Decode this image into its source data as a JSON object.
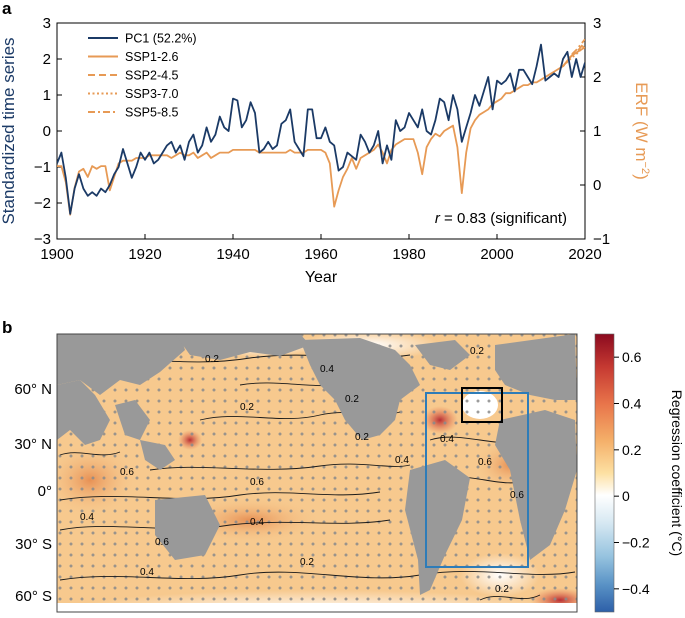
{
  "panel_a_label": "a",
  "panel_b_label": "b",
  "chart_data": [
    {
      "type": "line",
      "xlabel": "Year",
      "ylabel": "Standardized time series",
      "ylabel_right": "ERF (W m⁻²)",
      "ylabel_right_main": "ERF (W m",
      "ylabel_right_sup": "−2",
      "ylabel_right_close": ")",
      "xlim": [
        1900,
        2020
      ],
      "ylim": [
        -3,
        3
      ],
      "ylim_right": [
        -1,
        3
      ],
      "xticks": [
        "1900",
        "1920",
        "1940",
        "1960",
        "1980",
        "2000",
        "2020"
      ],
      "yticks": [
        "−3",
        "−2",
        "−1",
        "0",
        "1",
        "2",
        "3"
      ],
      "yticks_right": [
        "−1",
        "0",
        "1",
        "2",
        "3"
      ],
      "annotation_r": "r",
      "annotation_rest": " = 0.83 (significant)",
      "legend_placement": "top-left",
      "colors": {
        "pc1": "#1b3a66",
        "erf": "#e79a55"
      },
      "series": [
        {
          "name": "PC1 (52.2%)",
          "axis": "left",
          "x": [
            1900,
            1901,
            1902,
            1903,
            1904,
            1905,
            1906,
            1907,
            1908,
            1909,
            1910,
            1911,
            1912,
            1913,
            1914,
            1915,
            1916,
            1917,
            1918,
            1919,
            1920,
            1921,
            1922,
            1923,
            1924,
            1925,
            1926,
            1927,
            1928,
            1929,
            1930,
            1931,
            1932,
            1933,
            1934,
            1935,
            1936,
            1937,
            1938,
            1939,
            1940,
            1941,
            1942,
            1943,
            1944,
            1945,
            1946,
            1947,
            1948,
            1949,
            1950,
            1951,
            1952,
            1953,
            1954,
            1955,
            1956,
            1957,
            1958,
            1959,
            1960,
            1961,
            1962,
            1963,
            1964,
            1965,
            1966,
            1967,
            1968,
            1969,
            1970,
            1971,
            1972,
            1973,
            1974,
            1975,
            1976,
            1977,
            1978,
            1979,
            1980,
            1981,
            1982,
            1983,
            1984,
            1985,
            1986,
            1987,
            1988,
            1989,
            1990,
            1991,
            1992,
            1993,
            1994,
            1995,
            1996,
            1997,
            1998,
            1999,
            2000,
            2001,
            2002,
            2003,
            2004,
            2005,
            2006,
            2007,
            2008,
            2009,
            2010,
            2011,
            2012,
            2013,
            2014,
            2015,
            2016,
            2017,
            2018,
            2019,
            2020
          ],
          "values": [
            -0.9,
            -0.6,
            -1.3,
            -2.3,
            -1.6,
            -1.2,
            -1.6,
            -1.8,
            -1.7,
            -1.8,
            -1.6,
            -1.7,
            -1.5,
            -1.2,
            -1.0,
            -0.5,
            -0.9,
            -1.3,
            -1.0,
            -0.6,
            -0.8,
            -0.6,
            -0.9,
            -0.8,
            -0.6,
            -0.4,
            -0.3,
            -0.6,
            -0.4,
            -0.8,
            -0.3,
            -0.1,
            -0.6,
            -0.4,
            0.1,
            -0.3,
            -0.1,
            0.4,
            0.1,
            0.0,
            0.9,
            0.85,
            0.1,
            0.3,
            0.8,
            0.5,
            -0.6,
            -0.5,
            -0.3,
            -0.5,
            -0.4,
            0.2,
            0.3,
            0.6,
            -0.3,
            -0.5,
            -0.7,
            0.6,
            0.6,
            -0.2,
            -0.2,
            0.1,
            -0.3,
            -0.4,
            -1.1,
            -1.0,
            -0.6,
            -0.7,
            -0.8,
            -0.1,
            -0.3,
            -0.6,
            -0.4,
            0.0,
            -0.9,
            -0.4,
            -0.8,
            0.3,
            0.0,
            0.1,
            0.5,
            0.3,
            0.1,
            0.6,
            0.0,
            -0.1,
            0.3,
            0.9,
            0.8,
            0.3,
            1.0,
            0.6,
            -0.3,
            0.1,
            0.5,
            1.0,
            0.7,
            1.1,
            1.5,
            0.6,
            1.4,
            1.3,
            1.4,
            1.6,
            1.1,
            1.7,
            1.7,
            1.5,
            1.3,
            1.8,
            2.4,
            1.4,
            1.5,
            1.6,
            1.5,
            2.0,
            2.2,
            1.5,
            2.0,
            1.5,
            1.9
          ]
        },
        {
          "name": "SSP1-2.6",
          "axis": "right",
          "x": [
            1900,
            1901,
            1902,
            1903,
            1904,
            1905,
            1906,
            1907,
            1908,
            1909,
            1910,
            1911,
            1912,
            1913,
            1914,
            1915,
            1916,
            1917,
            1918,
            1919,
            1920,
            1921,
            1922,
            1923,
            1924,
            1925,
            1926,
            1927,
            1928,
            1929,
            1930,
            1931,
            1932,
            1933,
            1934,
            1935,
            1936,
            1937,
            1938,
            1939,
            1940,
            1941,
            1942,
            1943,
            1944,
            1945,
            1946,
            1947,
            1948,
            1949,
            1950,
            1951,
            1952,
            1953,
            1954,
            1955,
            1956,
            1957,
            1958,
            1959,
            1960,
            1961,
            1962,
            1963,
            1964,
            1965,
            1966,
            1967,
            1968,
            1969,
            1970,
            1971,
            1972,
            1973,
            1974,
            1975,
            1976,
            1977,
            1978,
            1979,
            1980,
            1981,
            1982,
            1983,
            1984,
            1985,
            1986,
            1987,
            1988,
            1989,
            1990,
            1991,
            1992,
            1993,
            1994,
            1995,
            1996,
            1997,
            1998,
            1999,
            2000,
            2001,
            2002,
            2003,
            2004,
            2005,
            2006,
            2007,
            2008,
            2009,
            2010,
            2011,
            2012,
            2013,
            2014,
            2015,
            2016,
            2017,
            2018,
            2019,
            2020
          ],
          "values": [
            0.35,
            0.35,
            0.05,
            -0.55,
            -0.05,
            0.25,
            0.3,
            0.15,
            0.35,
            0.3,
            0.35,
            0.35,
            -0.1,
            0.15,
            0.4,
            0.45,
            0.45,
            0.45,
            0.5,
            0.5,
            0.5,
            0.55,
            0.55,
            0.55,
            0.55,
            0.55,
            0.5,
            0.55,
            0.6,
            0.55,
            0.55,
            0.6,
            0.5,
            0.55,
            0.6,
            0.5,
            0.55,
            0.6,
            0.6,
            0.6,
            0.65,
            0.65,
            0.65,
            0.65,
            0.65,
            0.65,
            0.6,
            0.6,
            0.6,
            0.6,
            0.6,
            0.6,
            0.6,
            0.65,
            0.6,
            0.6,
            0.6,
            0.65,
            0.65,
            0.65,
            0.65,
            0.6,
            0.4,
            -0.4,
            -0.1,
            0.15,
            0.3,
            0.5,
            0.3,
            0.5,
            0.55,
            0.6,
            0.65,
            0.75,
            0.6,
            0.4,
            0.65,
            0.75,
            0.8,
            0.85,
            0.85,
            0.85,
            0.6,
            0.2,
            0.7,
            0.85,
            0.95,
            0.9,
            1.0,
            1.05,
            1.1,
            0.7,
            -0.15,
            0.6,
            1.05,
            1.2,
            1.3,
            1.35,
            1.4,
            1.5,
            1.55,
            1.6,
            1.7,
            1.7,
            1.75,
            1.8,
            1.85,
            1.85,
            1.9,
            1.9,
            1.95,
            2.0,
            2.05,
            2.1,
            2.15,
            2.2,
            2.3,
            2.4,
            2.45,
            2.5,
            2.55
          ]
        },
        {
          "name": "SSP2-4.5",
          "axis": "right",
          "x": [
            2015,
            2016,
            2017,
            2018,
            2019,
            2020
          ],
          "values": [
            2.2,
            2.3,
            2.4,
            2.45,
            2.55,
            2.65
          ]
        },
        {
          "name": "SSP3-7.0",
          "axis": "right",
          "x": [
            2015,
            2016,
            2017,
            2018,
            2019,
            2020
          ],
          "values": [
            2.2,
            2.28,
            2.36,
            2.42,
            2.5,
            2.6
          ]
        },
        {
          "name": "SSP5-8.5",
          "axis": "right",
          "x": [
            2015,
            2016,
            2017,
            2018,
            2019,
            2020
          ],
          "values": [
            2.2,
            2.3,
            2.42,
            2.5,
            2.6,
            2.7
          ]
        }
      ]
    },
    {
      "type": "heatmap",
      "colorbar_label": "Regression coefficient (°C)",
      "colorbar_ticks": [
        "0.6",
        "0.4",
        "0.2",
        "0",
        "−0.2",
        "−0.4"
      ],
      "colorbar_range": [
        -0.5,
        0.7
      ],
      "lat_labels": [
        "60° N",
        "30° N",
        "0°",
        "30° S",
        "60° S"
      ],
      "contour_labels": [
        "0.2",
        "0.4",
        "0.6"
      ],
      "colors": {
        "land": "#999999",
        "box_region": "#2e7cb8",
        "box_subpolar": "#000000"
      }
    }
  ]
}
